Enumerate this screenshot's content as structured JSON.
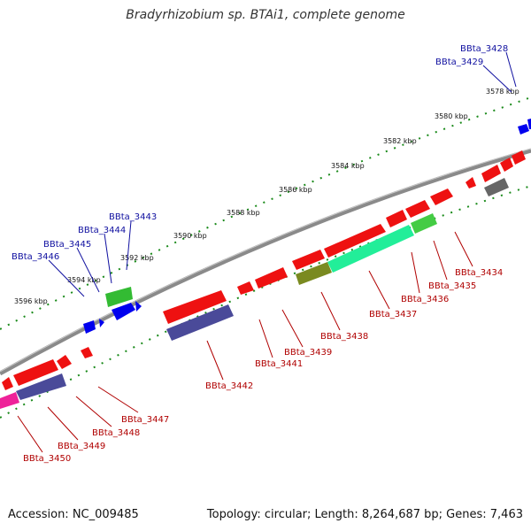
{
  "title": "Bradyrhizobium sp. BTAi1, complete genome",
  "footer": {
    "accession": "Accession: NC_009485",
    "summary": "Topology: circular; Length: 8,264,687 bp; Genes: 7,463"
  },
  "colors": {
    "backbone": "#8a8a8a",
    "forward_gene": "#0000ee",
    "reverse_gene": "#ee1111",
    "tick": "#1a8a1a",
    "fwd_label": "#1010a0",
    "rev_label": "#b00000"
  },
  "tick_labels": [
    "3578 kbp",
    "3580 kbp",
    "3582 kbp",
    "3584 kbp",
    "3586 kbp",
    "3588 kbp",
    "3590 kbp",
    "3592 kbp",
    "3594 kbp",
    "3596 kbp"
  ],
  "forward_gene_labels": [
    "BBta_3428",
    "BBta_3429",
    "BBta_3443",
    "BBta_3444",
    "BBta_3445",
    "BBta_3446"
  ],
  "reverse_gene_labels": [
    "BBta_3434",
    "BBta_3435",
    "BBta_3436",
    "BBta_3437",
    "BBta_3438",
    "BBta_3439",
    "BBta_3441",
    "BBta_3442",
    "BBta_3447",
    "BBta_3448",
    "BBta_3449",
    "BBta_3450"
  ]
}
